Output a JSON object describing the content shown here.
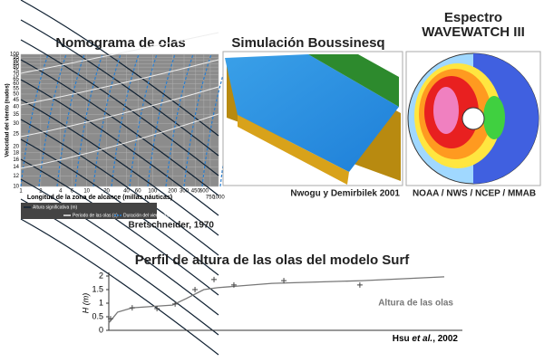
{
  "nomograma": {
    "title": "Nomograma de olas",
    "ylabel": "Velocidad del viento (nudos)",
    "xlabel": "Longitud de la zona de alcance (millas náuticas)",
    "ylim": [
      10,
      100
    ],
    "yticks": [
      10,
      12,
      14,
      16,
      18,
      20,
      25,
      30,
      35,
      40,
      45,
      50,
      55,
      60,
      65,
      70,
      75,
      80,
      85,
      90,
      95,
      100
    ],
    "xlim": [
      1,
      1000
    ],
    "xticks": [
      1,
      2,
      4,
      6,
      10,
      20,
      40,
      60,
      100,
      200,
      300,
      450,
      600,
      750,
      1000
    ],
    "legend": [
      "Altura significativa (m)",
      "Periodo de las olas (s)",
      "Duración del viento (h)"
    ],
    "credit": "Bretschneider, 1970"
  },
  "simulacion": {
    "title": "Simulación Boussinesq",
    "credit": "Nwogu y Demirbilek 2001"
  },
  "espectro": {
    "title": [
      "Espectro",
      "WAVEWATCH III"
    ],
    "credit": "NOAA / NWS / NCEP / MMAB"
  },
  "chart_data": {
    "type": "line",
    "title": "Perfil de altura de las olas del modelo Surf",
    "ylabel": "H (m)",
    "xlim": [
      0,
      8
    ],
    "ylim": [
      0,
      2
    ],
    "yticks": [
      0,
      0.5,
      1,
      1.5,
      2
    ],
    "series": [
      {
        "name": "Altura de las olas",
        "color": "#777777",
        "x": [
          0,
          0.2,
          0.53,
          1.44,
          1.75,
          2.15,
          2.46,
          3.69,
          5.74,
          7.59
        ],
        "values": [
          0.27,
          0.67,
          0.83,
          0.93,
          1.17,
          1.5,
          1.57,
          1.73,
          1.83,
          1.97
        ]
      }
    ],
    "markers": {
      "x": [
        0.04,
        0.53,
        1.09,
        1.5,
        1.95,
        2.38,
        2.83,
        3.96,
        5.68
      ],
      "values": [
        0.43,
        0.83,
        0.8,
        0.97,
        1.5,
        1.87,
        1.67,
        1.83,
        1.67
      ]
    },
    "credit": [
      "Hsu ",
      "et al.",
      ", 2002"
    ]
  }
}
